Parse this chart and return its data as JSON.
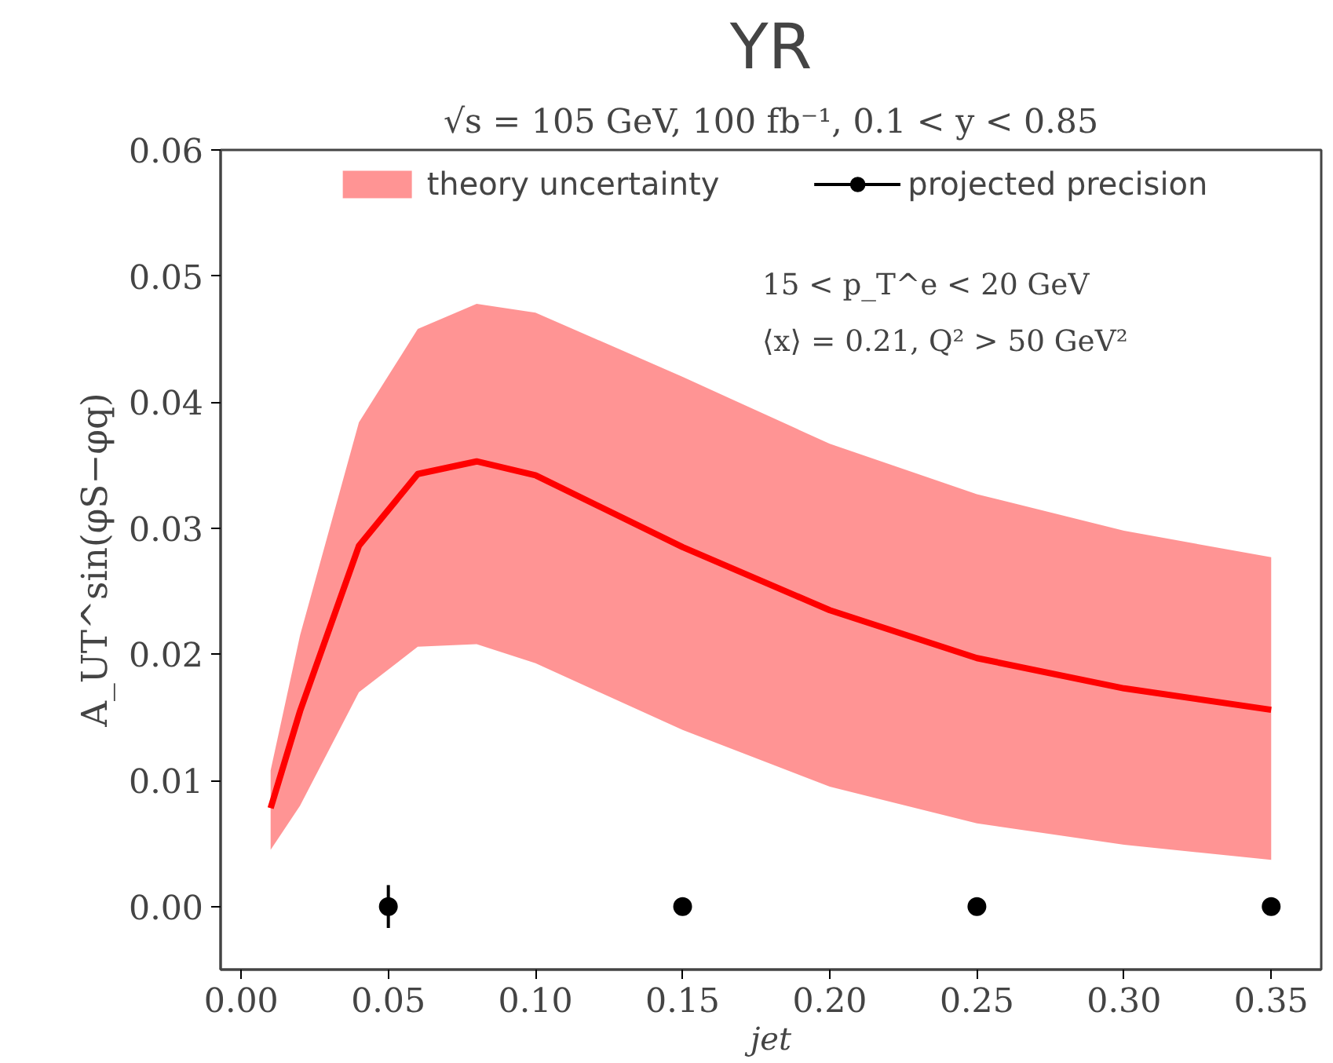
{
  "chart_data": {
    "type": "line",
    "title": "YR",
    "subtitle": "√s = 105 GeV, 100 fb⁻¹, 0.1 < y < 0.85",
    "xlabel": "jet",
    "ylabel": "A_UT^sin(φS−φq)",
    "annotations": [
      "15 < p_T^e < 20 GeV",
      "⟨x⟩ = 0.21, Q² > 50 GeV²"
    ],
    "series": [
      {
        "name": "theory uncertainty",
        "color": "#ff0000",
        "x": [
          0.01,
          0.02,
          0.04,
          0.06,
          0.08,
          0.1,
          0.15,
          0.2,
          0.25,
          0.3,
          0.35
        ],
        "values": [
          0.0078,
          0.0155,
          0.0286,
          0.0343,
          0.0353,
          0.0342,
          0.0285,
          0.0235,
          0.0197,
          0.0173,
          0.0156
        ],
        "lower": [
          0.0045,
          0.008,
          0.017,
          0.0206,
          0.0208,
          0.0193,
          0.014,
          0.0095,
          0.0066,
          0.0049,
          0.0037
        ],
        "upper": [
          0.0108,
          0.0215,
          0.0384,
          0.0458,
          0.0478,
          0.0471,
          0.042,
          0.0367,
          0.0327,
          0.0298,
          0.0277
        ]
      },
      {
        "name": "projected precision",
        "type": "scatter",
        "color": "#000000",
        "x": [
          0.05,
          0.15,
          0.25,
          0.35
        ],
        "values": [
          0,
          0,
          0,
          0
        ],
        "errors": [
          0.0017,
          0.0006,
          0.0006,
          0.0006
        ],
        "marker": "circle"
      }
    ],
    "xlim": [
      -0.007,
      0.367
    ],
    "ylim": [
      -0.005,
      0.06
    ],
    "xticks": [
      {
        "value": 0,
        "label": "0.00"
      },
      0.05,
      {
        "value": 0.1,
        "label": "0.10"
      },
      0.15,
      {
        "value": 0.2,
        "label": "0.20"
      },
      0.25,
      {
        "value": 0.3,
        "label": "0.30"
      },
      0.35
    ],
    "yticks": [
      {
        "value": 0,
        "label": "0.00"
      },
      0.01,
      0.02,
      0.03,
      0.04,
      0.05,
      0.06
    ],
    "legend": "top",
    "grid": false
  }
}
